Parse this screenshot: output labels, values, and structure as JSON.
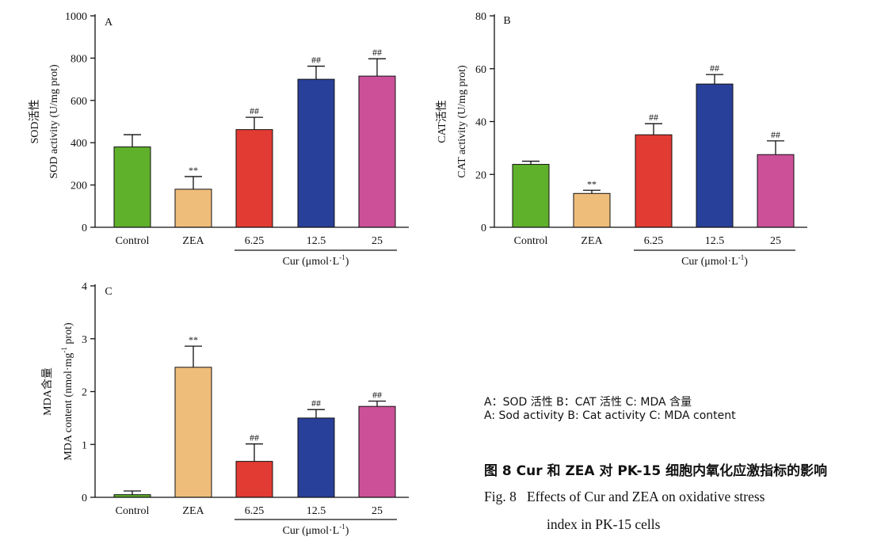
{
  "colors": {
    "control": "#5fb12b",
    "zea": "#efbd7a",
    "c625": "#e23b33",
    "c125": "#29409a",
    "c25": "#cc5098",
    "axis": "#111111"
  },
  "chart_data": [
    {
      "type": "bar",
      "panel": "A",
      "ylabel_line1": "SOD活性",
      "ylabel_line2": "SOD activity (U/mg prot)",
      "categories": [
        "Control",
        "ZEA",
        "6.25",
        "12.5",
        "25"
      ],
      "group_label": "Cur (μmol·L",
      "group_label_sup": "-1",
      "group_label_end": ")",
      "values": [
        380,
        180,
        462,
        700,
        715
      ],
      "errors": [
        58,
        60,
        58,
        62,
        82
      ],
      "annotations": [
        "",
        "**",
        "##",
        "##",
        "##"
      ],
      "ylim": [
        0,
        1000
      ],
      "yticks": [
        0,
        200,
        400,
        600,
        800,
        1000
      ]
    },
    {
      "type": "bar",
      "panel": "B",
      "ylabel_line1": "CAT活性",
      "ylabel_line2": "CAT activity (U/mg prot)",
      "categories": [
        "Control",
        "ZEA",
        "6.25",
        "12.5",
        "25"
      ],
      "group_label": "Cur (μmol·L",
      "group_label_sup": "-1",
      "group_label_end": ")",
      "values": [
        23.8,
        12.8,
        35,
        54.2,
        27.5
      ],
      "errors": [
        1.2,
        1.2,
        4.2,
        3.6,
        5.2
      ],
      "annotations": [
        "",
        "**",
        "##",
        "##",
        "##"
      ],
      "ylim": [
        0,
        80
      ],
      "yticks": [
        0,
        20,
        40,
        60,
        80
      ]
    },
    {
      "type": "bar",
      "panel": "C",
      "ylabel_line1": "MDA含量",
      "ylabel_line2a": "MDA content (nmol·mg",
      "ylabel_line2_sup": "-1",
      "ylabel_line2b": " prot)",
      "categories": [
        "Control",
        "ZEA",
        "6.25",
        "12.5",
        "25"
      ],
      "group_label": "Cur (μmol·L",
      "group_label_sup": "-1",
      "group_label_end": ")",
      "values": [
        0.05,
        2.46,
        0.68,
        1.5,
        1.72
      ],
      "errors": [
        0.07,
        0.4,
        0.33,
        0.16,
        0.1
      ],
      "annotations": [
        "",
        "**",
        "##",
        "##",
        "##"
      ],
      "ylim": [
        0,
        4
      ],
      "yticks": [
        0,
        1,
        2,
        3,
        4
      ]
    }
  ],
  "legend": {
    "line_cn": "A：SOD 活性 B：CAT 活性 C: MDA 含量",
    "line_en": "A: Sod activity B: Cat activity C: MDA content"
  },
  "caption": {
    "cn": "图 8   Cur 和 ZEA 对 PK-15 细胞内氧化应激指标的影响",
    "en_line1": "Fig. 8   Effects of Cur and ZEA on oxidative stress",
    "en_line2": "index in PK-15 cells"
  }
}
